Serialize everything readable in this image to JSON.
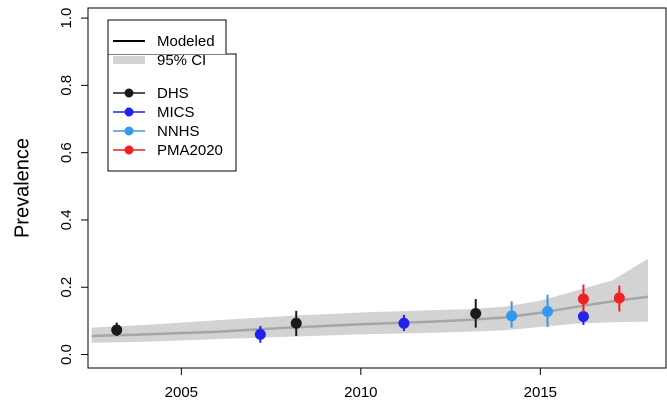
{
  "chart_data": {
    "type": "line",
    "ylabel": "Prevalence",
    "xlabel": "",
    "title": "",
    "xlim": [
      2002.4,
      2018.5
    ],
    "ylim": [
      -0.04,
      1.03
    ],
    "x_ticks": [
      2005,
      2010,
      2015
    ],
    "y_ticks": [
      0.0,
      0.2,
      0.4,
      0.6,
      0.8,
      1.0
    ],
    "y_tick_labels": [
      "0.0",
      "0.2",
      "0.4",
      "0.6",
      "0.8",
      "1.0"
    ],
    "grid": false,
    "legend_position": "top-left",
    "modeled": {
      "name": "Modeled",
      "color": "#a6a6a6",
      "x": [
        2002.5,
        2004,
        2006,
        2008,
        2010,
        2012,
        2013,
        2014,
        2015,
        2016,
        2017,
        2018
      ],
      "y": [
        0.055,
        0.06,
        0.068,
        0.08,
        0.09,
        0.098,
        0.103,
        0.11,
        0.124,
        0.142,
        0.158,
        0.172
      ]
    },
    "ci": {
      "name": "95% CI",
      "color": "#d3d3d3",
      "x": [
        2002.5,
        2004,
        2006,
        2008,
        2010,
        2012,
        2013,
        2014,
        2015,
        2016,
        2017,
        2018
      ],
      "lower": [
        0.035,
        0.038,
        0.046,
        0.053,
        0.06,
        0.065,
        0.068,
        0.072,
        0.082,
        0.092,
        0.096,
        0.098
      ],
      "upper": [
        0.08,
        0.088,
        0.102,
        0.115,
        0.125,
        0.132,
        0.135,
        0.142,
        0.16,
        0.19,
        0.22,
        0.285
      ]
    },
    "series": [
      {
        "name": "DHS",
        "color": "#1a1a1a",
        "points": [
          {
            "x": 2003.2,
            "y": 0.073,
            "lo": 0.055,
            "hi": 0.095
          },
          {
            "x": 2008.2,
            "y": 0.093,
            "lo": 0.055,
            "hi": 0.13
          },
          {
            "x": 2013.2,
            "y": 0.122,
            "lo": 0.08,
            "hi": 0.165
          }
        ]
      },
      {
        "name": "MICS",
        "color": "#2222ee",
        "points": [
          {
            "x": 2007.2,
            "y": 0.06,
            "lo": 0.035,
            "hi": 0.085
          },
          {
            "x": 2011.2,
            "y": 0.093,
            "lo": 0.07,
            "hi": 0.118
          },
          {
            "x": 2016.2,
            "y": 0.113,
            "lo": 0.088,
            "hi": 0.14
          }
        ]
      },
      {
        "name": "NNHS",
        "color": "#3399ee",
        "points": [
          {
            "x": 2014.2,
            "y": 0.115,
            "lo": 0.08,
            "hi": 0.158
          },
          {
            "x": 2015.2,
            "y": 0.128,
            "lo": 0.082,
            "hi": 0.178
          }
        ]
      },
      {
        "name": "PMA2020",
        "color": "#ee2222",
        "points": [
          {
            "x": 2016.2,
            "y": 0.165,
            "lo": 0.125,
            "hi": 0.208
          },
          {
            "x": 2017.2,
            "y": 0.168,
            "lo": 0.128,
            "hi": 0.205
          }
        ]
      }
    ]
  }
}
